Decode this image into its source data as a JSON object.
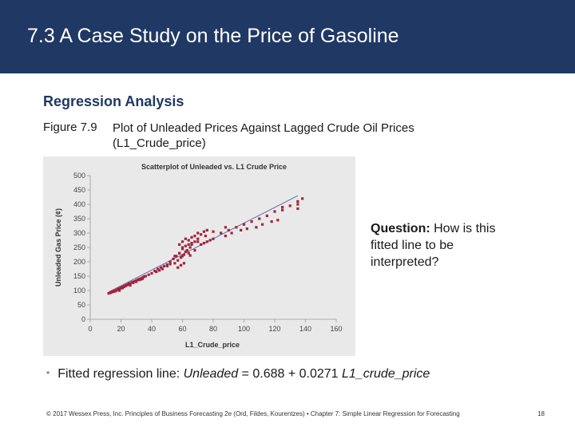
{
  "slide": {
    "title": "7.3 A Case Study on the Price of Gasoline",
    "section": "Regression Analysis",
    "figure_label": "Figure 7.9",
    "figure_caption": "Plot of Unleaded Prices Against Lagged Crude Oil Prices (L1_Crude_price)",
    "callout_question": "Question:",
    "callout_text": " How is this fitted line to be interpreted?",
    "bullet_prefix": "Fitted regression line: ",
    "bullet_eq_y": "Unleaded",
    "bullet_eq_mid": " = 0.688 + 0.0271 ",
    "bullet_eq_x": "L1_crude_price",
    "footer": "© 2017 Wessex Press, Inc. Principles of Business Forecasting 2e (Ord, Fildes, Kourentzes) • Chapter 7: Simple Linear Regression for Forecasting",
    "page_number": "18"
  },
  "colors": {
    "header": "#1f3864",
    "points": "#a3223b",
    "fit_line": "#5b6fa6"
  },
  "chart_data": {
    "type": "scatter",
    "title": "Scatterplot of Unleaded vs. L1 Crude Price",
    "xlabel": "L1_Crude_price",
    "ylabel": "Unleaded Gas Price (¢)",
    "xlim": [
      0,
      160
    ],
    "ylim": [
      0,
      500
    ],
    "xticks": [
      0,
      20,
      40,
      60,
      80,
      100,
      120,
      140,
      160
    ],
    "yticks": [
      0,
      50,
      100,
      150,
      200,
      250,
      300,
      350,
      400,
      450,
      500
    ],
    "fit_line": {
      "x": [
        12,
        135
      ],
      "y": [
        95,
        430
      ]
    },
    "series": [
      {
        "name": "Unleaded",
        "x": [
          12,
          13,
          14,
          15,
          15,
          16,
          17,
          17,
          18,
          18,
          19,
          19,
          20,
          20,
          21,
          21,
          22,
          22,
          23,
          23,
          24,
          25,
          25,
          26,
          27,
          28,
          28,
          29,
          30,
          30,
          31,
          32,
          32,
          33,
          33,
          34,
          34,
          35,
          14,
          16,
          18,
          20,
          22,
          24,
          26,
          28,
          30,
          32,
          34,
          36,
          38,
          40,
          42,
          44,
          46,
          48,
          50,
          52,
          54,
          56,
          58,
          55,
          57,
          59,
          60,
          61,
          62,
          63,
          64,
          65,
          58,
          60,
          62,
          64,
          66,
          68,
          70,
          72,
          74,
          76,
          60,
          62,
          64,
          66,
          68,
          70,
          72,
          74,
          76,
          78,
          80,
          90,
          95,
          100,
          105,
          110,
          115,
          120,
          125,
          130,
          135,
          88,
          92,
          98,
          102,
          108,
          112,
          118,
          122,
          85,
          88,
          70,
          75,
          80,
          57,
          59,
          61,
          55,
          58,
          60,
          65,
          66,
          68,
          45,
          47,
          50,
          43,
          52,
          135,
          135,
          125,
          138
        ],
        "y": [
          90,
          92,
          95,
          96,
          98,
          97,
          100,
          102,
          103,
          105,
          100,
          107,
          108,
          110,
          112,
          109,
          115,
          113,
          118,
          116,
          120,
          122,
          125,
          118,
          128,
          130,
          127,
          132,
          135,
          131,
          138,
          140,
          137,
          142,
          139,
          145,
          141,
          148,
          94,
          99,
          104,
          108,
          114,
          119,
          124,
          129,
          134,
          139,
          144,
          150,
          155,
          160,
          168,
          175,
          180,
          185,
          190,
          200,
          210,
          220,
          230,
          195,
          205,
          215,
          220,
          225,
          235,
          240,
          230,
          222,
          260,
          270,
          280,
          275,
          285,
          290,
          300,
          295,
          305,
          310,
          250,
          255,
          260,
          265,
          270,
          280,
          260,
          265,
          270,
          275,
          280,
          310,
          320,
          330,
          340,
          350,
          360,
          375,
          390,
          395,
          410,
          290,
          300,
          310,
          315,
          320,
          330,
          340,
          345,
          300,
          320,
          270,
          290,
          305,
          180,
          188,
          195,
          220,
          230,
          245,
          250,
          260,
          240,
          170,
          175,
          185,
          165,
          192,
          385,
          400,
          380,
          420
        ]
      }
    ]
  }
}
